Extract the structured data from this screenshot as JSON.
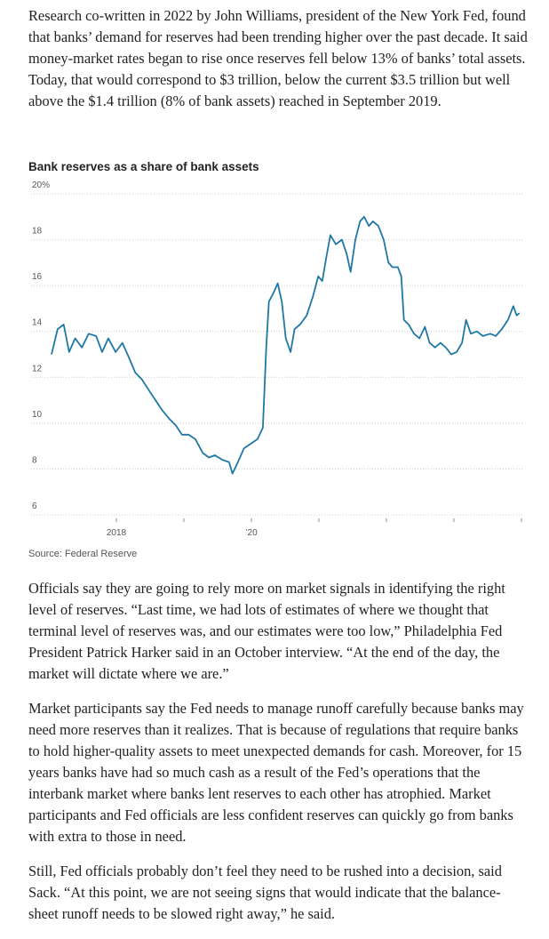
{
  "intro": [
    "Research co-written in 2022 by John Williams, president of the New York Fed, found that banks’ demand for reserves had been trending higher over the past decade. It said money-market rates began to rise once reserves fell below 13% of banks’ total assets. Today, that would correspond to $3 trillion, below the current $3.5 trillion but well above the $1.4 trillion (8% of bank assets) reached in September 2019."
  ],
  "chart_data": {
    "type": "line",
    "title": "Bank reserves as a share of bank assets",
    "source": "Source: Federal Reserve",
    "color": "#1f78a4",
    "grid": true,
    "x": [
      2017.04,
      2017.13,
      2017.22,
      2017.3,
      2017.39,
      2017.49,
      2017.59,
      2017.7,
      2017.79,
      2017.88,
      2017.99,
      2018.09,
      2018.18,
      2018.28,
      2018.38,
      2018.49,
      2018.58,
      2018.67,
      2018.78,
      2018.88,
      2018.97,
      2019.07,
      2019.17,
      2019.28,
      2019.37,
      2019.46,
      2019.57,
      2019.67,
      2019.72,
      2019.8,
      2019.89,
      2019.99,
      2020.09,
      2020.17,
      2020.22,
      2020.26,
      2020.33,
      2020.39,
      2020.45,
      2020.51,
      2020.58,
      2020.64,
      2020.72,
      2020.82,
      2020.91,
      2020.99,
      2021.05,
      2021.12,
      2021.17,
      2021.25,
      2021.34,
      2021.41,
      2021.47,
      2021.54,
      2021.61,
      2021.67,
      2021.74,
      2021.8,
      2021.88,
      2021.96,
      2022.03,
      2022.09,
      2022.17,
      2022.22,
      2022.26,
      2022.33,
      2022.41,
      2022.49,
      2022.57,
      2022.64,
      2022.72,
      2022.8,
      2022.88,
      2022.96,
      2023.04,
      2023.12,
      2023.18,
      2023.25,
      2023.34,
      2023.43,
      2023.54,
      2023.62,
      2023.71,
      2023.8,
      2023.88,
      2023.93,
      2023.97
    ],
    "values": [
      13.0,
      14.1,
      14.3,
      13.1,
      13.7,
      13.3,
      13.9,
      13.8,
      13.1,
      13.7,
      13.1,
      13.5,
      12.9,
      12.2,
      11.9,
      11.4,
      11.0,
      10.6,
      10.2,
      9.9,
      9.5,
      9.5,
      9.3,
      8.7,
      8.5,
      8.6,
      8.4,
      8.3,
      7.8,
      8.3,
      8.9,
      9.1,
      9.3,
      9.8,
      13.3,
      15.3,
      15.7,
      16.1,
      15.3,
      13.7,
      13.1,
      14.1,
      14.3,
      14.7,
      15.5,
      16.4,
      16.2,
      17.4,
      18.2,
      17.8,
      18.0,
      17.4,
      16.6,
      18.0,
      18.8,
      19.0,
      18.6,
      18.8,
      18.6,
      18.0,
      17.0,
      16.8,
      16.8,
      16.4,
      14.5,
      14.3,
      13.9,
      13.7,
      14.2,
      13.5,
      13.3,
      13.5,
      13.3,
      13.0,
      13.1,
      13.5,
      14.5,
      13.9,
      14.0,
      13.8,
      13.9,
      13.8,
      14.1,
      14.5,
      15.1,
      14.7,
      14.8
    ],
    "xlim": [
      2017,
      2024.04
    ],
    "xticks": [
      2018,
      {
        "value": 2019,
        "label": null
      },
      {
        "value": 2020,
        "label": "’20"
      },
      {
        "value": 2021,
        "label": null
      },
      {
        "value": 2022,
        "label": null
      },
      {
        "value": 2023,
        "label": null
      },
      {
        "value": 2024,
        "label": null
      }
    ],
    "ylim": [
      6,
      20
    ],
    "yticks": [
      {
        "value": 20,
        "label": "20%"
      },
      18,
      16,
      14,
      12,
      10,
      8,
      6
    ]
  },
  "body": [
    "Officials say they are going to rely more on market signals in identifying the right level of reserves. “Last time, we had lots of estimates of where we thought that terminal level of reserves was, and our estimates were too low,” Philadelphia Fed President Patrick Harker said in an October interview. “At the end of the day, the market will dictate where we are.”",
    "Market participants say the Fed needs to manage runoff carefully because banks may need more reserves than it realizes. That is because of regulations that require banks to hold higher-quality assets to meet unexpected demands for cash. Moreover, for 15 years banks have had so much cash as a result of the Fed’s operations that the interbank market where banks lent reserves to each other has atrophied. Market participants and Fed officials are less confident reserves can quickly go from banks with extra to those in need.",
    "Still, Fed officials probably don’t feel they need to be rushed into a decision, said Sack. “At this point, we are not seeing signs that would indicate that the balance-sheet runoff needs to be slowed right away,” he said."
  ]
}
